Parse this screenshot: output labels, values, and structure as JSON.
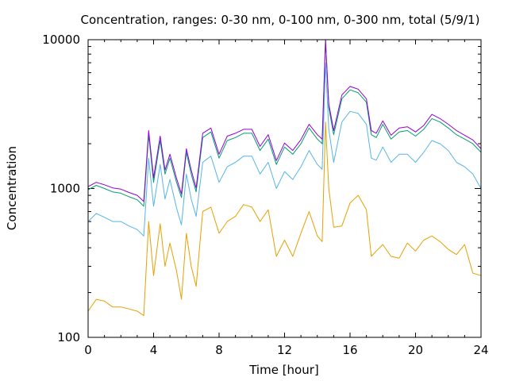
{
  "chart_data": {
    "type": "line",
    "title": "Concentration, ranges: 0-30 nm, 0-100 nm, 0-300 nm, total (5/9/1)",
    "xlabel": "Time [hour]",
    "ylabel": "Concentration",
    "xlim": [
      0,
      24
    ],
    "ylim": [
      100,
      10000
    ],
    "yscale": "log",
    "grid": false,
    "x_ticks": [
      "0",
      "4",
      "8",
      "12",
      "16",
      "20",
      "24"
    ],
    "y_ticks": [
      "100",
      "1000",
      "10000"
    ],
    "x": [
      0,
      0.5,
      1,
      1.5,
      2,
      2.5,
      3,
      3.4,
      3.7,
      4,
      4.4,
      4.7,
      5,
      5.4,
      5.7,
      6,
      6.3,
      6.6,
      7,
      7.5,
      8,
      8.5,
      9,
      9.5,
      10,
      10.5,
      11,
      11.5,
      12,
      12.5,
      13,
      13.5,
      14,
      14.3,
      14.5,
      14.7,
      15,
      15.5,
      16,
      16.5,
      17,
      17.3,
      17.6,
      18,
      18.5,
      19,
      19.5,
      20,
      20.5,
      21,
      21.5,
      22,
      22.5,
      23,
      23.5,
      24
    ],
    "series": [
      {
        "color": "#e6a000",
        "values": [
          150,
          180,
          175,
          160,
          160,
          155,
          150,
          140,
          600,
          260,
          580,
          300,
          430,
          280,
          180,
          500,
          300,
          220,
          700,
          750,
          500,
          600,
          650,
          780,
          750,
          600,
          720,
          350,
          450,
          350,
          500,
          700,
          480,
          440,
          2800,
          1000,
          550,
          560,
          800,
          900,
          720,
          350,
          380,
          420,
          350,
          340,
          430,
          380,
          450,
          480,
          440,
          390,
          360,
          420,
          270,
          260
        ]
      },
      {
        "color": "#56b4e9",
        "values": [
          600,
          680,
          640,
          600,
          600,
          560,
          530,
          480,
          1600,
          760,
          1450,
          850,
          1150,
          740,
          570,
          1250,
          850,
          650,
          1500,
          1650,
          1100,
          1400,
          1500,
          1650,
          1650,
          1250,
          1500,
          1000,
          1300,
          1150,
          1400,
          1800,
          1450,
          1350,
          7000,
          2500,
          1500,
          2800,
          3300,
          3200,
          2700,
          1600,
          1550,
          1900,
          1500,
          1700,
          1700,
          1500,
          1750,
          2100,
          2000,
          1800,
          1500,
          1400,
          1250,
          1000
        ]
      },
      {
        "color": "#009e73",
        "values": [
          980,
          1050,
          1000,
          950,
          930,
          880,
          840,
          760,
          2300,
          1100,
          2100,
          1250,
          1600,
          1100,
          870,
          1750,
          1250,
          950,
          2200,
          2400,
          1600,
          2100,
          2200,
          2350,
          2350,
          1800,
          2150,
          1450,
          1900,
          1700,
          2000,
          2550,
          2150,
          2000,
          10000,
          3500,
          2300,
          4000,
          4600,
          4400,
          3800,
          2300,
          2200,
          2700,
          2150,
          2400,
          2450,
          2250,
          2500,
          2950,
          2800,
          2550,
          2300,
          2150,
          2000,
          1750
        ]
      },
      {
        "color": "#9400d3",
        "values": [
          1030,
          1100,
          1060,
          1010,
          990,
          940,
          900,
          820,
          2450,
          1180,
          2250,
          1330,
          1700,
          1170,
          920,
          1850,
          1330,
          1010,
          2350,
          2550,
          1700,
          2250,
          2350,
          2500,
          2500,
          1920,
          2300,
          1540,
          2020,
          1800,
          2130,
          2700,
          2300,
          2150,
          10000,
          3700,
          2450,
          4250,
          4850,
          4650,
          4000,
          2450,
          2350,
          2850,
          2280,
          2550,
          2600,
          2400,
          2650,
          3150,
          2950,
          2700,
          2450,
          2280,
          2120,
          1850
        ]
      }
    ]
  }
}
